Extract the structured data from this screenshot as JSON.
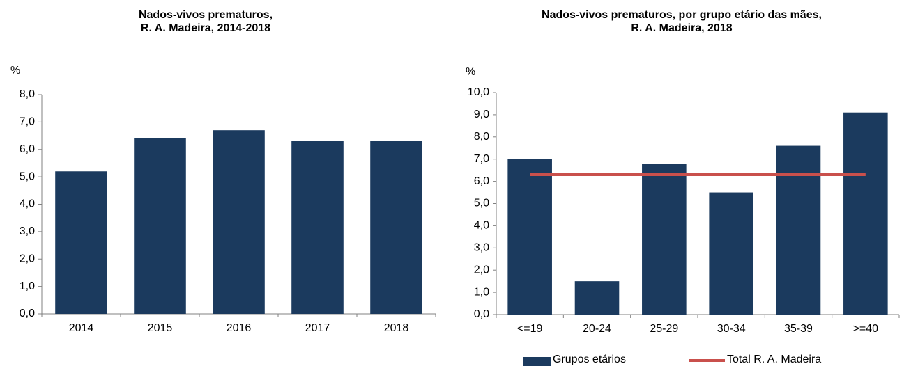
{
  "chart_data": [
    {
      "type": "bar",
      "title": [
        "Nados-vivos prematuros,",
        "R. A. Madeira, 2014-2018"
      ],
      "y_label": "%",
      "categories": [
        "2014",
        "2015",
        "2016",
        "2017",
        "2018"
      ],
      "values": [
        5.2,
        6.4,
        6.7,
        6.3,
        6.3
      ],
      "color": "#1b3a5e",
      "ylim": [
        0,
        8
      ],
      "yticks": [
        {
          "value": 0,
          "label": "0,0"
        },
        {
          "value": 1,
          "label": "1,0"
        },
        {
          "value": 2,
          "label": "2,0"
        },
        {
          "value": 3,
          "label": "3,0"
        },
        {
          "value": 4,
          "label": "4,0"
        },
        {
          "value": 5,
          "label": "5,0"
        },
        {
          "value": 6,
          "label": "6,0"
        },
        {
          "value": 7,
          "label": "7,0"
        },
        {
          "value": 8,
          "label": "8,0"
        }
      ],
      "grid": false
    },
    {
      "type": "bar_line",
      "title": [
        "Nados-vivos prematuros, por grupo etário das mães,",
        "R. A. Madeira, 2018"
      ],
      "y_label": "%",
      "categories": [
        "<=19",
        "20-24",
        "25-29",
        "30-34",
        "35-39",
        ">=40"
      ],
      "series": [
        {
          "name": "Grupos etários",
          "type": "bar",
          "color": "#1b3a5e",
          "values": [
            7.0,
            1.5,
            6.8,
            5.5,
            7.6,
            9.1
          ]
        },
        {
          "name": "Total R. A. Madeira",
          "type": "line",
          "color": "#c9504c",
          "values": [
            6.3,
            6.3,
            6.3,
            6.3,
            6.3,
            6.3
          ]
        }
      ],
      "ylim": [
        0,
        10
      ],
      "yticks": [
        {
          "value": 0,
          "label": "0,0"
        },
        {
          "value": 1,
          "label": "1,0"
        },
        {
          "value": 2,
          "label": "2,0"
        },
        {
          "value": 3,
          "label": "3,0"
        },
        {
          "value": 4,
          "label": "4,0"
        },
        {
          "value": 5,
          "label": "5,0"
        },
        {
          "value": 6,
          "label": "6,0"
        },
        {
          "value": 7,
          "label": "7,0"
        },
        {
          "value": 8,
          "label": "8,0"
        },
        {
          "value": 9,
          "label": "9,0"
        },
        {
          "value": 10,
          "label": "10,0"
        }
      ],
      "grid": false,
      "legend": "bottom"
    }
  ]
}
